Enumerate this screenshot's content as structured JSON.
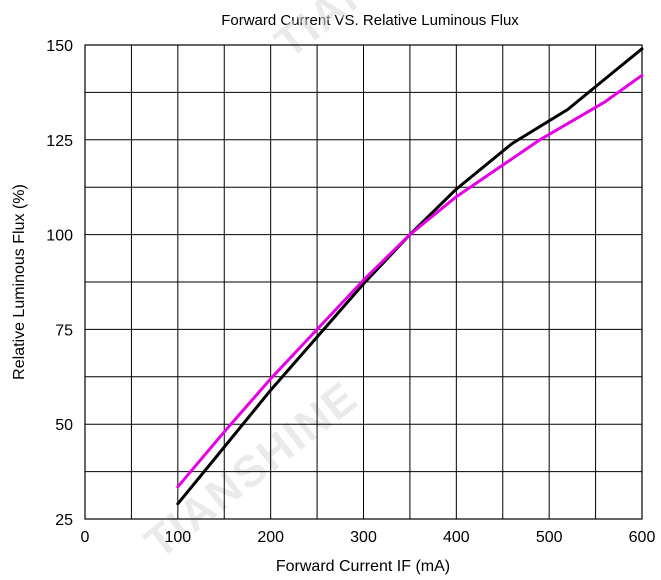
{
  "chart_data": {
    "type": "line",
    "title": "Forward Current VS.  Relative Luminous Flux",
    "xlabel": "Forward  Current  IF  (mA)",
    "ylabel": "Relative  Luminous  Flux  (%)",
    "xlim": [
      0,
      600
    ],
    "ylim": [
      25,
      150
    ],
    "x_ticks": [
      0,
      100,
      200,
      300,
      400,
      500,
      600
    ],
    "x_tick_labels": [
      "0",
      "100",
      "200",
      "300",
      "400",
      "500",
      "600"
    ],
    "y_ticks": [
      25,
      50,
      75,
      100,
      125,
      150
    ],
    "y_tick_labels": [
      "25",
      "50",
      "75",
      "100",
      "125",
      "150"
    ],
    "x_grid_step": 50,
    "y_grid_step": 12.5,
    "grid": true,
    "series": [
      {
        "color": "#000000",
        "x": [
          100,
          150,
          200,
          250,
          300,
          350,
          400,
          460,
          520,
          570,
          600
        ],
        "y": [
          29,
          44,
          59,
          73,
          87,
          100,
          112,
          124,
          133,
          143,
          149
        ]
      },
      {
        "color": "#e600e6",
        "x": [
          100,
          150,
          200,
          250,
          300,
          350,
          400,
          490,
          560,
          600
        ],
        "y": [
          33.5,
          48,
          62,
          75,
          88,
          100,
          110,
          125,
          135,
          142
        ]
      }
    ],
    "watermark": "TIANSHINE"
  }
}
